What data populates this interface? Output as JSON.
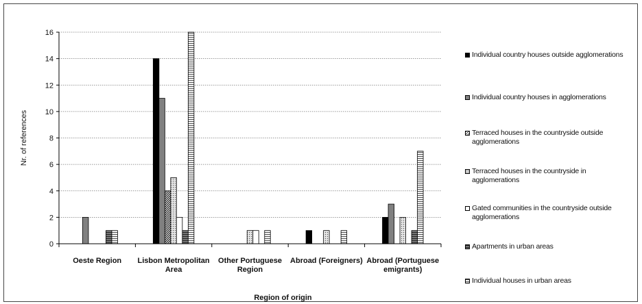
{
  "chart_data": {
    "type": "bar",
    "title": "",
    "xlabel": "Region of origin",
    "ylabel": "Nr. of references",
    "ylim": [
      0,
      16
    ],
    "yticks": [
      0,
      2,
      4,
      6,
      8,
      10,
      12,
      14,
      16
    ],
    "grid": "horizontal dotted",
    "legend_position": "right",
    "categories": [
      [
        "Oeste Region"
      ],
      [
        "Lisbon Metropolitan",
        "Area"
      ],
      [
        "Other Portuguese",
        "Region"
      ],
      [
        "Abroad (Foreigners)"
      ],
      [
        "Abroad (Portuguese",
        "emigrants)"
      ]
    ],
    "series": [
      {
        "name": "Individual country houses outside agglomerations",
        "legend_lines": [
          "Individual country houses outside agglomerations"
        ],
        "pattern": "solid-black",
        "values": [
          0,
          14,
          0,
          1,
          2
        ]
      },
      {
        "name": "Individual country houses in agglomerations",
        "legend_lines": [
          "Individual country houses in agglomerations"
        ],
        "pattern": "solid-gray",
        "values": [
          2,
          11,
          0,
          0,
          3
        ]
      },
      {
        "name": "Terraced houses in the countryside outside agglomerations",
        "legend_lines": [
          "Terraced houses in the countryside outside",
          "agglomerations"
        ],
        "pattern": "diagonal-hatch",
        "values": [
          0,
          4,
          0,
          0,
          0
        ]
      },
      {
        "name": "Terraced houses in the countryside in agglomerations",
        "legend_lines": [
          "Terraced houses in the countryside in",
          "agglomerations"
        ],
        "pattern": "dotted",
        "values": [
          0,
          5,
          1,
          1,
          2
        ]
      },
      {
        "name": "Gated communities in the countryside outside agglomerations",
        "legend_lines": [
          "Gated communities in the countryside outside",
          "agglomerations"
        ],
        "pattern": "white",
        "values": [
          0,
          2,
          1,
          0,
          0
        ]
      },
      {
        "name": "Apartments in urban areas",
        "legend_lines": [
          "Apartments in urban areas"
        ],
        "pattern": "horizontal-stripe-dark",
        "values": [
          1,
          1,
          0,
          0,
          1
        ]
      },
      {
        "name": "Individual houses in urban areas",
        "legend_lines": [
          "Individual houses in urban areas"
        ],
        "pattern": "horizontal-stripe-light",
        "values": [
          1,
          16,
          1,
          1,
          7
        ]
      }
    ]
  }
}
